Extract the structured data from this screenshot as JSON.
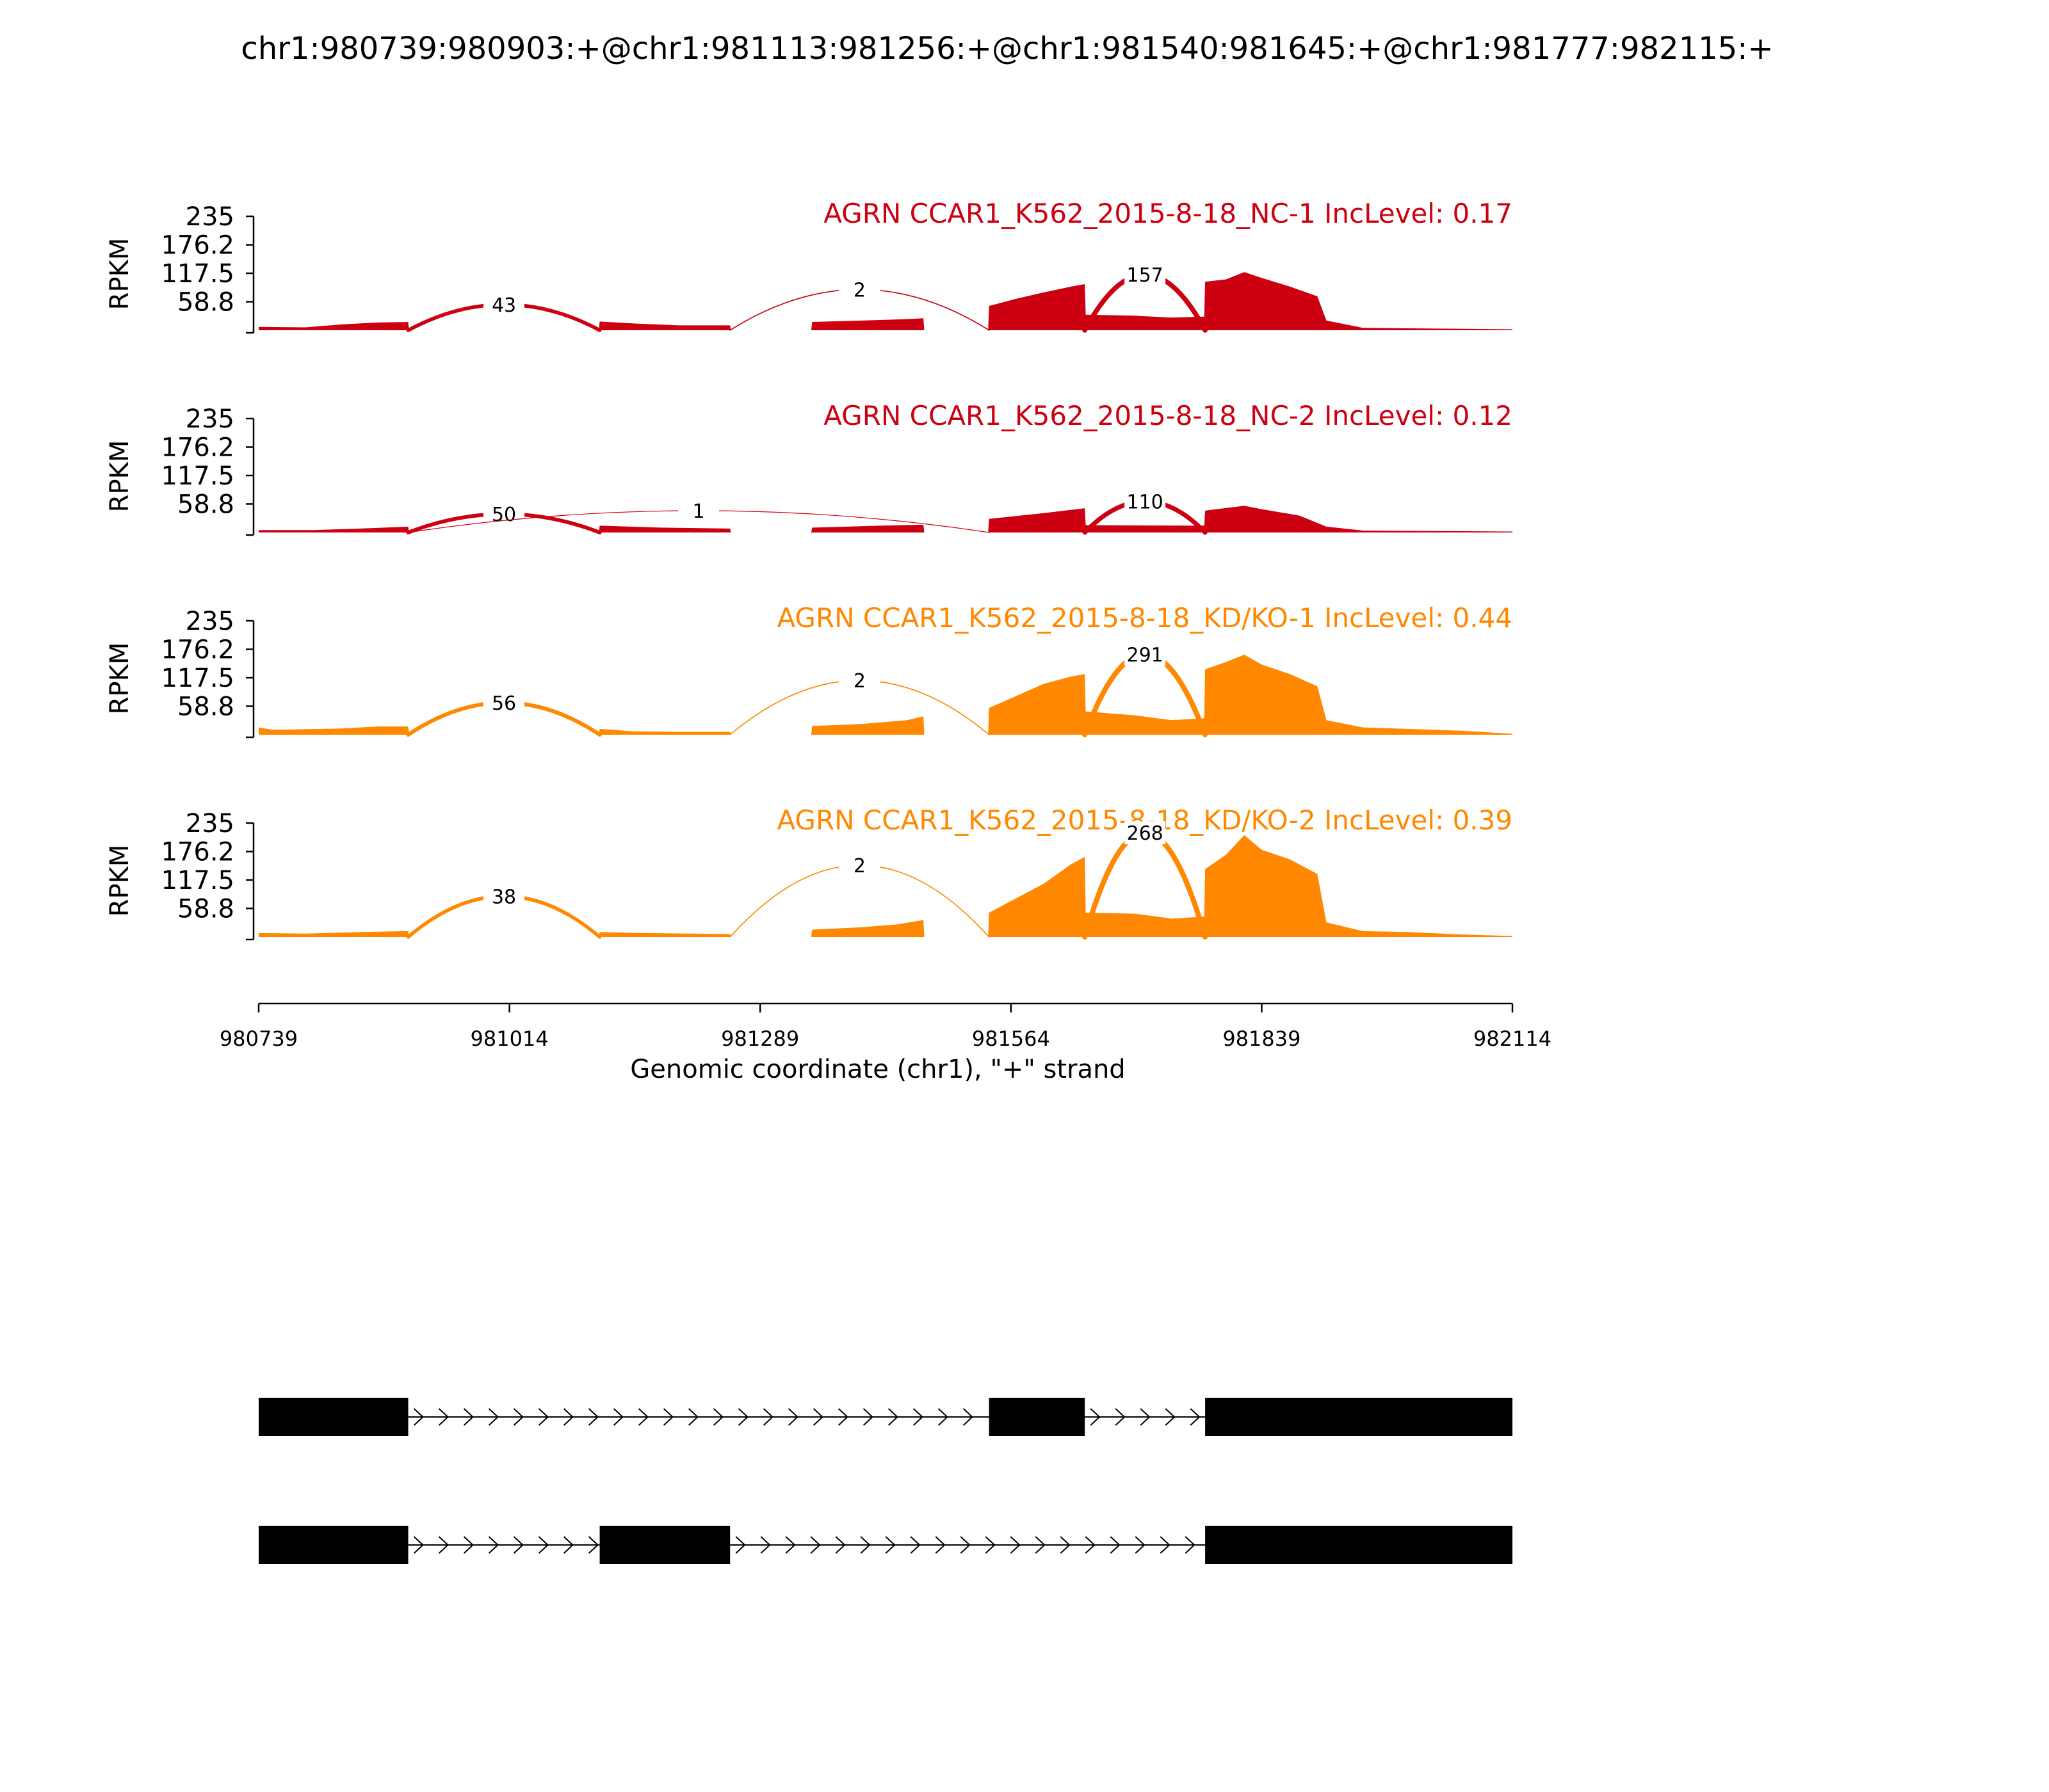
{
  "title": "chr1:980739:980903:+@chr1:981113:981256:+@chr1:981540:981645:+@chr1:981777:982115:+",
  "chart_data": {
    "type": "area",
    "x_range": [
      980739,
      982114
    ],
    "ylim": [
      0,
      235
    ],
    "yticks": [
      235,
      176.2,
      117.5,
      58.8
    ],
    "ylabel": "RPKM",
    "xticks": [
      980739,
      981014,
      981289,
      981564,
      981839,
      982114
    ],
    "xlabel": "Genomic coordinate (chr1), \"+\" strand",
    "grid": false,
    "panels": [
      {
        "label": "AGRN CCAR1_K562_2015-8-18_NC-1 IncLevel: 0.17",
        "color": "#cc0011",
        "coverage": [
          [
            980739,
            7
          ],
          [
            980790,
            6
          ],
          [
            980830,
            12
          ],
          [
            980870,
            16
          ],
          [
            980903,
            17
          ],
          [
            980904,
            0
          ],
          [
            981112,
            0
          ],
          [
            981113,
            18
          ],
          [
            981150,
            14
          ],
          [
            981200,
            10
          ],
          [
            981256,
            10
          ],
          [
            981257,
            0
          ],
          [
            981345,
            0
          ],
          [
            981346,
            17
          ],
          [
            981400,
            20
          ],
          [
            981450,
            23
          ],
          [
            981470,
            25
          ],
          [
            981468,
            25
          ],
          [
            981469,
            0
          ],
          [
            981539,
            0
          ],
          [
            981540,
            50
          ],
          [
            981570,
            65
          ],
          [
            981600,
            78
          ],
          [
            981630,
            90
          ],
          [
            981645,
            95
          ],
          [
            981646,
            32
          ],
          [
            981700,
            30
          ],
          [
            981740,
            26
          ],
          [
            981776,
            28
          ],
          [
            981777,
            100
          ],
          [
            981800,
            105
          ],
          [
            981820,
            120
          ],
          [
            981839,
            108
          ],
          [
            981870,
            90
          ],
          [
            981900,
            70
          ],
          [
            981910,
            20
          ],
          [
            981950,
            5
          ],
          [
            982000,
            4
          ],
          [
            982060,
            3
          ],
          [
            982114,
            2
          ]
        ],
        "junctions": [
          {
            "start": 980903,
            "end": 981113,
            "count": 43,
            "label_y": 53
          },
          {
            "start": 981256,
            "end": 981540,
            "count": 2,
            "label_y": 84
          },
          {
            "start": 981645,
            "end": 981777,
            "count": 157,
            "label_y": 115
          }
        ]
      },
      {
        "label": "AGRN CCAR1_K562_2015-8-18_NC-2 IncLevel: 0.12",
        "color": "#cc0011",
        "coverage": [
          [
            980739,
            5
          ],
          [
            980800,
            5
          ],
          [
            980850,
            8
          ],
          [
            980903,
            12
          ],
          [
            980904,
            0
          ],
          [
            981112,
            0
          ],
          [
            981113,
            14
          ],
          [
            981180,
            10
          ],
          [
            981256,
            8
          ],
          [
            981257,
            0
          ],
          [
            981345,
            0
          ],
          [
            981346,
            10
          ],
          [
            981420,
            14
          ],
          [
            981468,
            16
          ],
          [
            981469,
            0
          ],
          [
            981539,
            0
          ],
          [
            981540,
            28
          ],
          [
            981600,
            40
          ],
          [
            981645,
            50
          ],
          [
            981646,
            15
          ],
          [
            981776,
            14
          ],
          [
            981777,
            45
          ],
          [
            981820,
            55
          ],
          [
            981839,
            48
          ],
          [
            981880,
            35
          ],
          [
            981910,
            12
          ],
          [
            981950,
            4
          ],
          [
            982114,
            2
          ]
        ],
        "junctions": [
          {
            "start": 980903,
            "end": 981113,
            "count": 50,
            "label_y": 38
          },
          {
            "start": 980903,
            "end": 981540,
            "count": 1,
            "label_y": 45
          },
          {
            "start": 981645,
            "end": 981777,
            "count": 110,
            "label_y": 64
          }
        ]
      },
      {
        "label": "AGRN CCAR1_K562_2015-8-18_KD/KO-1 IncLevel: 0.44",
        "color": "#ff8800",
        "coverage": [
          [
            980739,
            15
          ],
          [
            980755,
            10
          ],
          [
            980830,
            13
          ],
          [
            980870,
            17
          ],
          [
            980903,
            17
          ],
          [
            980904,
            0
          ],
          [
            981112,
            0
          ],
          [
            981113,
            12
          ],
          [
            981150,
            7
          ],
          [
            981200,
            6
          ],
          [
            981256,
            6
          ],
          [
            981257,
            0
          ],
          [
            981345,
            0
          ],
          [
            981346,
            18
          ],
          [
            981400,
            22
          ],
          [
            981450,
            30
          ],
          [
            981468,
            38
          ],
          [
            981469,
            0
          ],
          [
            981539,
            0
          ],
          [
            981540,
            55
          ],
          [
            981570,
            80
          ],
          [
            981600,
            105
          ],
          [
            981630,
            120
          ],
          [
            981645,
            125
          ],
          [
            981646,
            48
          ],
          [
            981700,
            40
          ],
          [
            981740,
            30
          ],
          [
            981776,
            34
          ],
          [
            981777,
            135
          ],
          [
            981800,
            150
          ],
          [
            981820,
            165
          ],
          [
            981839,
            145
          ],
          [
            981870,
            125
          ],
          [
            981900,
            100
          ],
          [
            981910,
            30
          ],
          [
            981950,
            15
          ],
          [
            982000,
            12
          ],
          [
            982060,
            8
          ],
          [
            982114,
            2
          ]
        ],
        "junctions": [
          {
            "start": 980903,
            "end": 981113,
            "count": 56,
            "label_y": 66
          },
          {
            "start": 981256,
            "end": 981540,
            "count": 2,
            "label_y": 112
          },
          {
            "start": 981645,
            "end": 981777,
            "count": 291,
            "label_y": 166
          }
        ]
      },
      {
        "label": "AGRN CCAR1_K562_2015-8-18_KD/KO-2 IncLevel: 0.39",
        "color": "#ff8800",
        "coverage": [
          [
            980739,
            8
          ],
          [
            980790,
            7
          ],
          [
            980850,
            10
          ],
          [
            980903,
            12
          ],
          [
            980904,
            0
          ],
          [
            981112,
            0
          ],
          [
            981113,
            10
          ],
          [
            981160,
            8
          ],
          [
            981256,
            6
          ],
          [
            981257,
            0
          ],
          [
            981345,
            0
          ],
          [
            981346,
            15
          ],
          [
            981400,
            20
          ],
          [
            981440,
            26
          ],
          [
            981468,
            35
          ],
          [
            981469,
            0
          ],
          [
            981539,
            0
          ],
          [
            981540,
            50
          ],
          [
            981570,
            80
          ],
          [
            981600,
            110
          ],
          [
            981630,
            150
          ],
          [
            981645,
            165
          ],
          [
            981646,
            50
          ],
          [
            981700,
            48
          ],
          [
            981740,
            38
          ],
          [
            981776,
            42
          ],
          [
            981777,
            140
          ],
          [
            981800,
            170
          ],
          [
            981820,
            210
          ],
          [
            981839,
            180
          ],
          [
            981870,
            160
          ],
          [
            981900,
            130
          ],
          [
            981910,
            30
          ],
          [
            981950,
            12
          ],
          [
            982000,
            10
          ],
          [
            982060,
            5
          ],
          [
            982114,
            2
          ]
        ],
        "junctions": [
          {
            "start": 980903,
            "end": 981113,
            "count": 38,
            "label_y": 84
          },
          {
            "start": 981256,
            "end": 981540,
            "count": 2,
            "label_y": 148
          },
          {
            "start": 981645,
            "end": 981777,
            "count": 268,
            "label_y": 215
          }
        ]
      }
    ],
    "isoforms": [
      {
        "exons": [
          [
            980739,
            980903
          ],
          [
            981540,
            981645
          ],
          [
            981777,
            982115
          ]
        ]
      },
      {
        "exons": [
          [
            980739,
            980903
          ],
          [
            981113,
            981256
          ],
          [
            981777,
            982115
          ]
        ]
      }
    ]
  }
}
